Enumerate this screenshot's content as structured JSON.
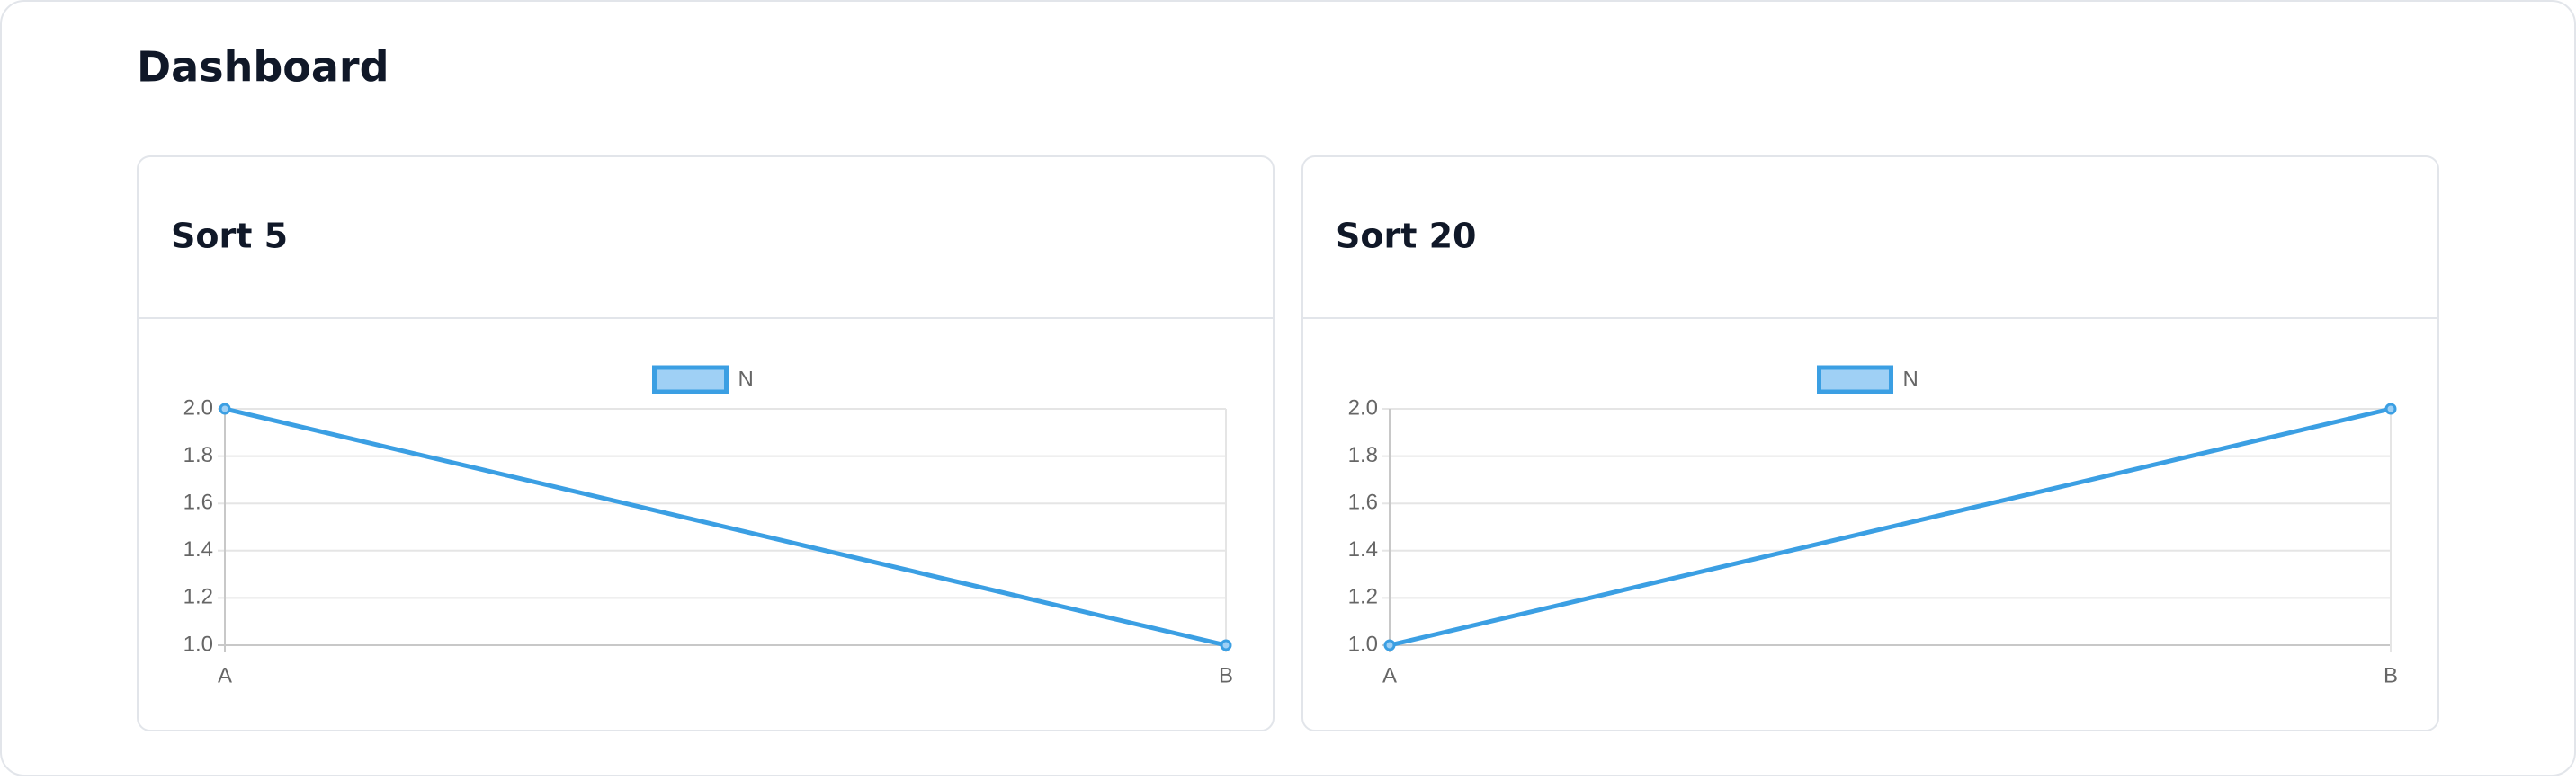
{
  "title": "Dashboard",
  "chart_data": [
    {
      "type": "line",
      "title": "Sort 5",
      "categories": [
        "A",
        "B"
      ],
      "series": [
        {
          "name": "N",
          "color": "#3b9fe3",
          "values": [
            2,
            1
          ]
        }
      ],
      "ylim": [
        1,
        2
      ],
      "yticks": [
        {
          "value": 1,
          "label": "1.0"
        },
        1.2,
        1.4,
        1.6,
        1.8,
        {
          "value": 2,
          "label": "2.0"
        }
      ],
      "grid": true,
      "legend": "top"
    },
    {
      "type": "line",
      "title": "Sort 20",
      "categories": [
        "A",
        "B"
      ],
      "series": [
        {
          "name": "N",
          "color": "#3b9fe3",
          "values": [
            1,
            2
          ]
        }
      ],
      "ylim": [
        1,
        2
      ],
      "yticks": [
        {
          "value": 1,
          "label": "1.0"
        },
        1.2,
        1.4,
        1.6,
        1.8,
        {
          "value": 2,
          "label": "2.0"
        }
      ],
      "grid": true,
      "legend": "top"
    }
  ]
}
